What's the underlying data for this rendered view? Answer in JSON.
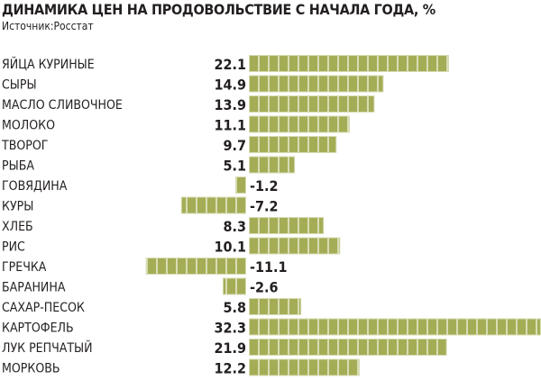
{
  "chart_data": {
    "type": "bar",
    "title": "ДИНАМИКА ЦЕН НА ПРОДОВОЛЬСТВИЕ С НАЧАЛА ГОДА, %",
    "subtitle": "Источник:Росстат",
    "categories": [
      "ЯЙЦА КУРИНЫЕ",
      "СЫРЫ",
      "МАСЛО СЛИВОЧНОЕ",
      "МОЛОКО",
      "ТВОРОГ",
      "РЫБА",
      "ГОВЯДИНА",
      "КУРЫ",
      "ХЛЕБ",
      "РИС",
      "ГРЕЧКА",
      "БАРАНИНА",
      "САХАР-ПЕСОК",
      "КАРТОФЕЛЬ",
      "ЛУК РЕПЧАТЫЙ",
      "МОРКОВЬ"
    ],
    "values": [
      22.1,
      14.9,
      13.9,
      11.1,
      9.7,
      5.1,
      -1.2,
      -7.2,
      8.3,
      10.1,
      -11.1,
      -2.6,
      5.8,
      32.3,
      21.9,
      12.2
    ],
    "labels": [
      "22.1",
      "14.9",
      "13.9",
      "11.1",
      "9.7",
      "5.1",
      "-1.2",
      "-7.2",
      "8.3",
      "10.1",
      "-11.1",
      "-2.6",
      "5.8",
      "32.3",
      "21.9",
      "12.2"
    ],
    "xlabel": "",
    "ylabel": "",
    "xlim": [
      -11.1,
      32.3
    ],
    "grid": false,
    "colors": {
      "bar": "#a4ad56",
      "seg_border": "#d8dcb4"
    }
  }
}
